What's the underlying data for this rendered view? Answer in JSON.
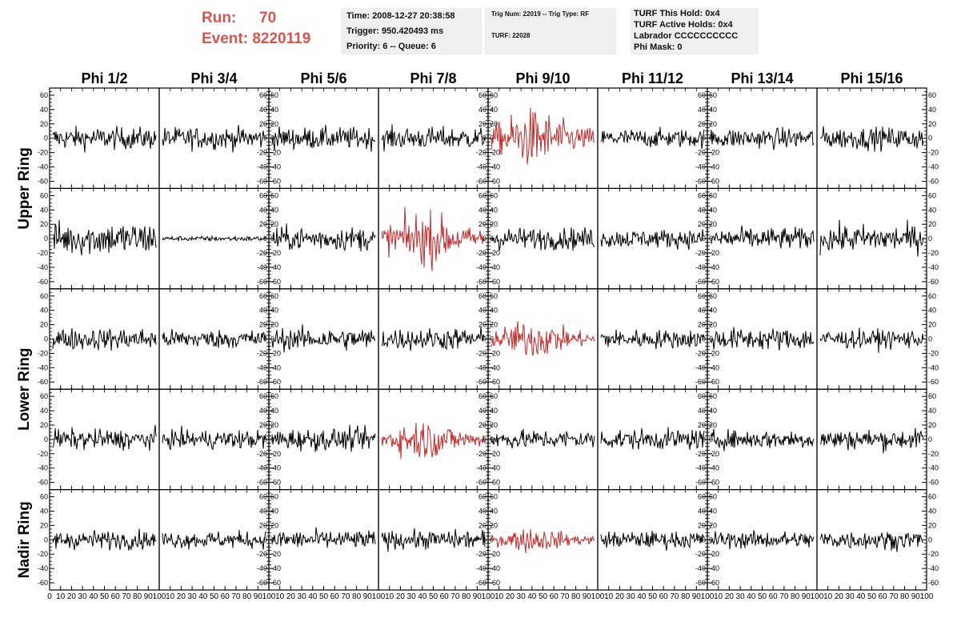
{
  "header": {
    "run_label": "Run:",
    "run_value": "70",
    "event_label": "Event:",
    "event_value": "8220119",
    "time": "Time: 2008-12-27 20:38:58",
    "trigger": "Trigger: 950.420493 ms",
    "priority": "Priority: 6 -- Queue: 6",
    "trig_num": "Trig Num: 22019 -- Trig Type: RF",
    "turf": "TURF: 22028",
    "turf_hold": "TURF This Hold: 0x4",
    "turf_active": "TURF Active Holds: 0x4",
    "labrador": "Labrador CCCCCCCCCC",
    "phi_mask": "Phi Mask: 0"
  },
  "colors": {
    "normal": "#000000",
    "triggered": "#c62828",
    "header_red": "#d9534f",
    "panel_bg": "#efefef"
  },
  "chart_data": {
    "type": "line",
    "title": "",
    "columns": [
      "Phi 1/2",
      "Phi 3/4",
      "Phi 5/6",
      "Phi 7/8",
      "Phi 9/10",
      "Phi 11/12",
      "Phi 13/14",
      "Phi 15/16"
    ],
    "ring_labels": [
      "Upper Ring",
      "Lower Ring",
      "Nadir Ring"
    ],
    "rows": 5,
    "ylim": [
      -70,
      70
    ],
    "yticks": [
      -60,
      -40,
      -20,
      0,
      20,
      40,
      60
    ],
    "xlim": [
      0,
      100
    ],
    "xticks": [
      0,
      10,
      20,
      30,
      40,
      50,
      60,
      70,
      80,
      90,
      100
    ],
    "samples_per_trace": 130,
    "amplitude": [
      [
        13,
        13,
        13,
        13,
        26,
        11,
        12,
        13
      ],
      [
        20,
        3,
        14,
        24,
        13,
        11,
        13,
        16
      ],
      [
        13,
        11,
        13,
        13,
        17,
        11,
        13,
        11
      ],
      [
        12,
        11,
        13,
        18,
        11,
        12,
        11,
        12
      ],
      [
        11,
        10,
        11,
        11,
        11,
        10,
        10,
        11
      ]
    ],
    "triggered": [
      [
        false,
        false,
        false,
        false,
        true,
        false,
        false,
        false
      ],
      [
        false,
        false,
        false,
        true,
        false,
        false,
        false,
        false
      ],
      [
        false,
        false,
        false,
        false,
        true,
        false,
        false,
        false
      ],
      [
        false,
        false,
        false,
        true,
        false,
        false,
        false,
        false
      ],
      [
        false,
        false,
        false,
        false,
        true,
        false,
        false,
        false
      ]
    ]
  }
}
